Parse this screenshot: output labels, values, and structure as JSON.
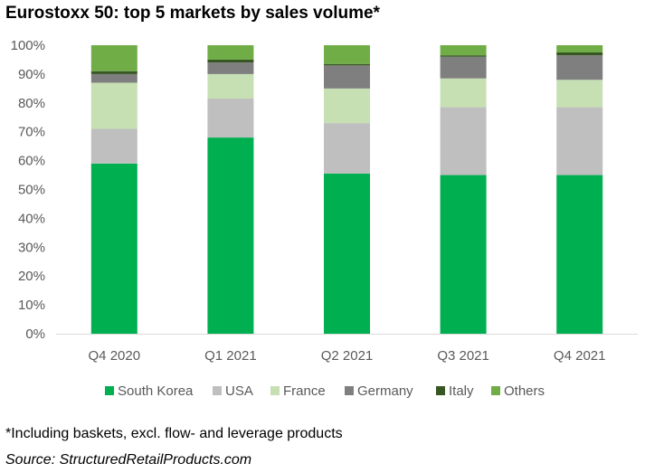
{
  "chart_data": {
    "type": "bar",
    "stacked": true,
    "title": "Eurostoxx 50: top 5 markets by sales volume*",
    "categories": [
      "Q4 2020",
      "Q1 2021",
      "Q2 2021",
      "Q3 2021",
      "Q4 2021"
    ],
    "ylim": [
      0,
      100
    ],
    "yticks": [
      "0%",
      "10%",
      "20%",
      "30%",
      "40%",
      "50%",
      "60%",
      "70%",
      "80%",
      "90%",
      "100%"
    ],
    "grid": false,
    "legend_position": "bottom",
    "series": [
      {
        "name": "South Korea",
        "color": "#00b050",
        "values": [
          59,
          68,
          55.5,
          55,
          55
        ]
      },
      {
        "name": "USA",
        "color": "#bfbfbf",
        "values": [
          12,
          13.5,
          17.5,
          23.5,
          23.5
        ]
      },
      {
        "name": "France",
        "color": "#c6e0b4",
        "values": [
          16,
          8.5,
          12,
          10,
          9.5
        ]
      },
      {
        "name": "Germany",
        "color": "#7f7f7f",
        "values": [
          3,
          4,
          8,
          7.5,
          8.5
        ]
      },
      {
        "name": "Italy",
        "color": "#375623",
        "values": [
          1,
          1,
          0.5,
          0.5,
          1
        ]
      },
      {
        "name": "Others",
        "color": "#70ad47",
        "values": [
          9,
          5,
          6.5,
          3.5,
          2.5
        ]
      }
    ]
  },
  "footnote": "*Including baskets, excl. flow- and leverage products",
  "source": "Source: StructuredRetailProducts.com"
}
